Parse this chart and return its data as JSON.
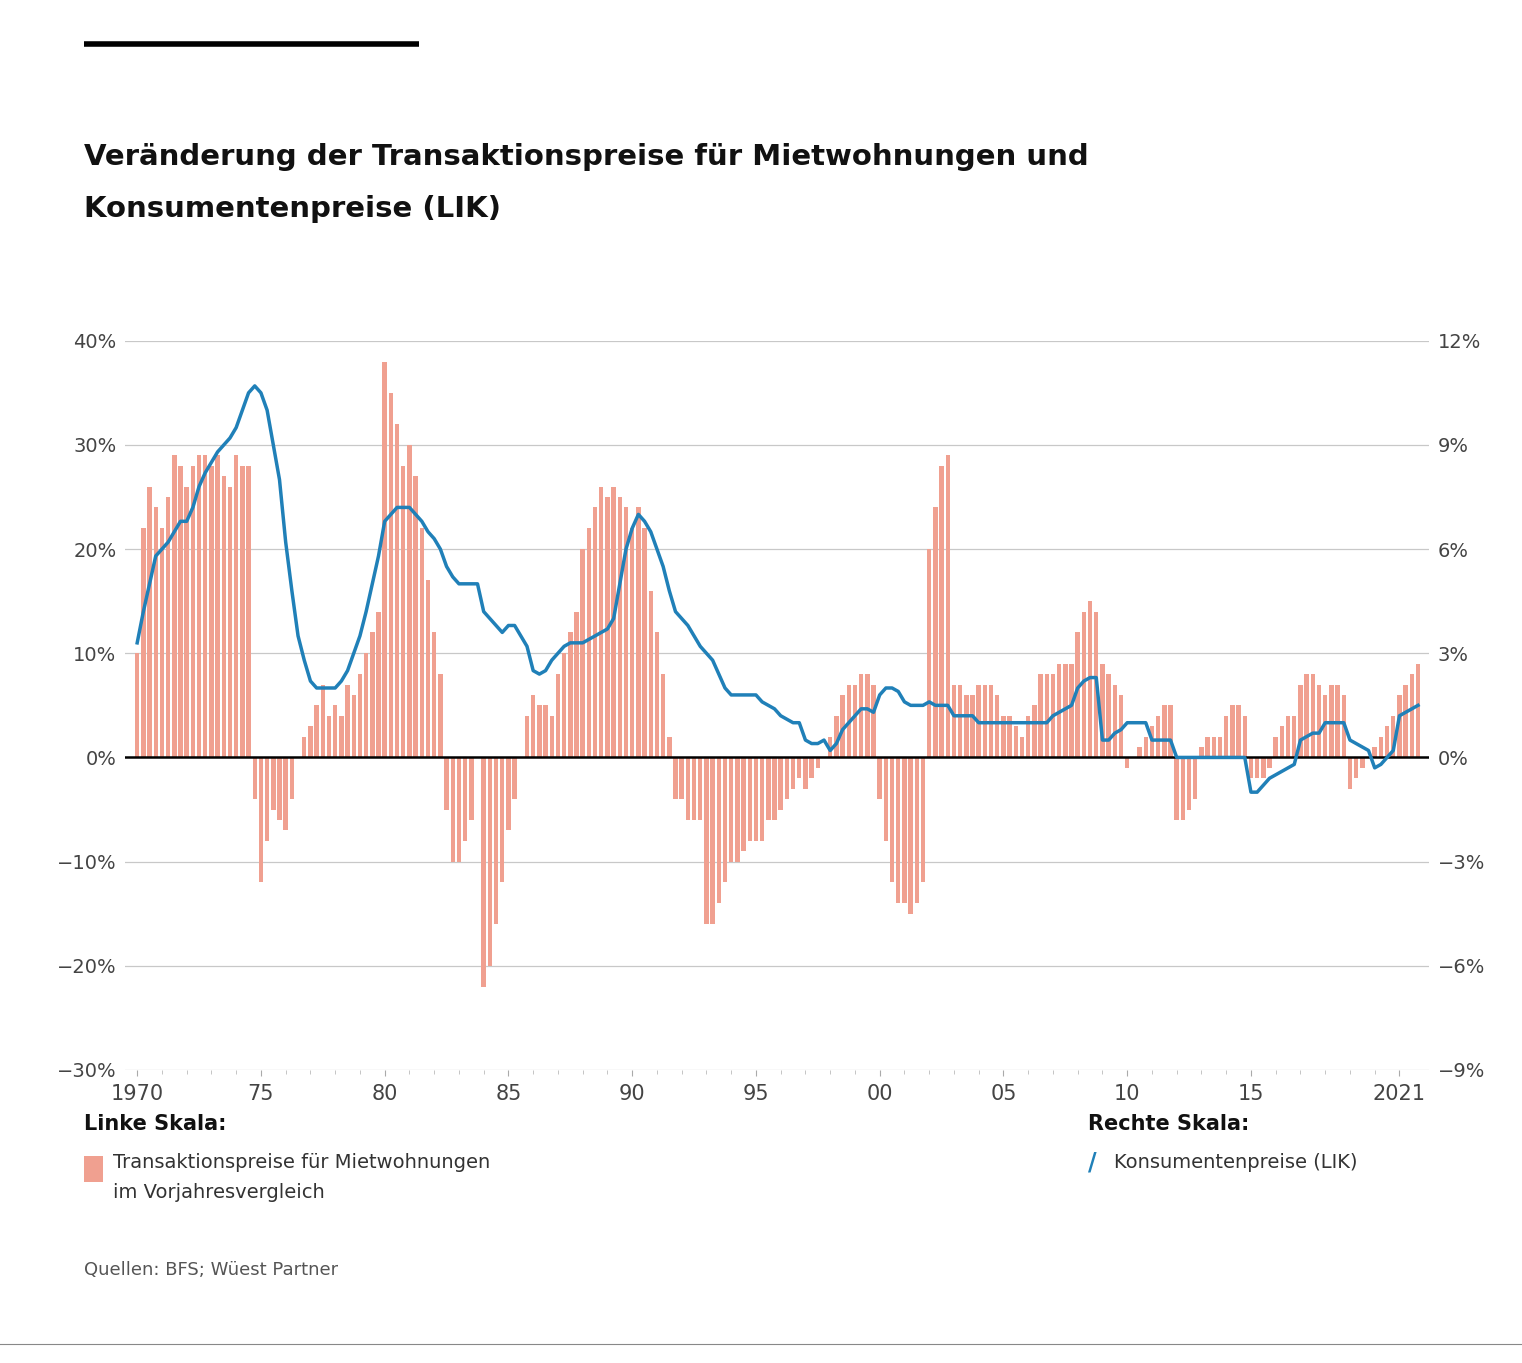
{
  "title_line1": "Veränderung der Transaktionspreise für Mietwohnungen und",
  "title_line2": "Konsumentenpreise (LIK)",
  "source": "Quellen: BFS; Wüest Partner",
  "legend_left_title": "Linke Skala:",
  "legend_left_label1": "Transaktionspreise für Mietwohnungen",
  "legend_left_label2": "im Vorjahresvergleich",
  "legend_right_title": "Rechte Skala:",
  "legend_right_label": "Konsumentenpreise (LIK)",
  "bar_color": "#F0A090",
  "line_color": "#2080B8",
  "background_color": "#FFFFFF",
  "grid_color": "#C8C8C8",
  "zero_line_color": "#000000",
  "ylim_left": [
    -0.3,
    0.4
  ],
  "ylim_right": [
    -0.09,
    0.12
  ],
  "yticks_left": [
    -0.3,
    -0.2,
    -0.1,
    0.0,
    0.1,
    0.2,
    0.3,
    0.4
  ],
  "yticks_right": [
    -0.09,
    -0.06,
    -0.03,
    0.0,
    0.03,
    0.06,
    0.09,
    0.12
  ],
  "bar_x": [
    1970.0,
    1970.25,
    1970.5,
    1970.75,
    1971.0,
    1971.25,
    1971.5,
    1971.75,
    1972.0,
    1972.25,
    1972.5,
    1972.75,
    1973.0,
    1973.25,
    1973.5,
    1973.75,
    1974.0,
    1974.25,
    1974.5,
    1974.75,
    1975.0,
    1975.25,
    1975.5,
    1975.75,
    1976.0,
    1976.25,
    1976.5,
    1976.75,
    1977.0,
    1977.25,
    1977.5,
    1977.75,
    1978.0,
    1978.25,
    1978.5,
    1978.75,
    1979.0,
    1979.25,
    1979.5,
    1979.75,
    1980.0,
    1980.25,
    1980.5,
    1980.75,
    1981.0,
    1981.25,
    1981.5,
    1981.75,
    1982.0,
    1982.25,
    1982.5,
    1982.75,
    1983.0,
    1983.25,
    1983.5,
    1983.75,
    1984.0,
    1984.25,
    1984.5,
    1984.75,
    1985.0,
    1985.25,
    1985.5,
    1985.75,
    1986.0,
    1986.25,
    1986.5,
    1986.75,
    1987.0,
    1987.25,
    1987.5,
    1987.75,
    1988.0,
    1988.25,
    1988.5,
    1988.75,
    1989.0,
    1989.25,
    1989.5,
    1989.75,
    1990.0,
    1990.25,
    1990.5,
    1990.75,
    1991.0,
    1991.25,
    1991.5,
    1991.75,
    1992.0,
    1992.25,
    1992.5,
    1992.75,
    1993.0,
    1993.25,
    1993.5,
    1993.75,
    1994.0,
    1994.25,
    1994.5,
    1994.75,
    1995.0,
    1995.25,
    1995.5,
    1995.75,
    1996.0,
    1996.25,
    1996.5,
    1996.75,
    1997.0,
    1997.25,
    1997.5,
    1997.75,
    1998.0,
    1998.25,
    1998.5,
    1998.75,
    1999.0,
    1999.25,
    1999.5,
    1999.75,
    2000.0,
    2000.25,
    2000.5,
    2000.75,
    2001.0,
    2001.25,
    2001.5,
    2001.75,
    2002.0,
    2002.25,
    2002.5,
    2002.75,
    2003.0,
    2003.25,
    2003.5,
    2003.75,
    2004.0,
    2004.25,
    2004.5,
    2004.75,
    2005.0,
    2005.25,
    2005.5,
    2005.75,
    2006.0,
    2006.25,
    2006.5,
    2006.75,
    2007.0,
    2007.25,
    2007.5,
    2007.75,
    2008.0,
    2008.25,
    2008.5,
    2008.75,
    2009.0,
    2009.25,
    2009.5,
    2009.75,
    2010.0,
    2010.25,
    2010.5,
    2010.75,
    2011.0,
    2011.25,
    2011.5,
    2011.75,
    2012.0,
    2012.25,
    2012.5,
    2012.75,
    2013.0,
    2013.25,
    2013.5,
    2013.75,
    2014.0,
    2014.25,
    2014.5,
    2014.75,
    2015.0,
    2015.25,
    2015.5,
    2015.75,
    2016.0,
    2016.25,
    2016.5,
    2016.75,
    2017.0,
    2017.25,
    2017.5,
    2017.75,
    2018.0,
    2018.25,
    2018.5,
    2018.75,
    2019.0,
    2019.25,
    2019.5,
    2019.75,
    2020.0,
    2020.25,
    2020.5,
    2020.75,
    2021.0,
    2021.25,
    2021.5,
    2021.75
  ],
  "bar_values": [
    0.1,
    0.22,
    0.26,
    0.24,
    0.22,
    0.25,
    0.29,
    0.28,
    0.26,
    0.28,
    0.29,
    0.29,
    0.28,
    0.29,
    0.27,
    0.26,
    0.29,
    0.28,
    0.28,
    -0.04,
    -0.12,
    -0.08,
    -0.05,
    -0.06,
    -0.07,
    -0.04,
    0.0,
    0.02,
    0.03,
    0.05,
    0.07,
    0.04,
    0.05,
    0.04,
    0.07,
    0.06,
    0.08,
    0.1,
    0.12,
    0.14,
    0.38,
    0.35,
    0.32,
    0.28,
    0.3,
    0.27,
    0.22,
    0.17,
    0.12,
    0.08,
    -0.05,
    -0.1,
    -0.1,
    -0.08,
    -0.06,
    0.0,
    -0.22,
    -0.2,
    -0.16,
    -0.12,
    -0.07,
    -0.04,
    0.0,
    0.04,
    0.06,
    0.05,
    0.05,
    0.04,
    0.08,
    0.1,
    0.12,
    0.14,
    0.2,
    0.22,
    0.24,
    0.26,
    0.25,
    0.26,
    0.25,
    0.24,
    0.22,
    0.24,
    0.22,
    0.16,
    0.12,
    0.08,
    0.02,
    -0.04,
    -0.04,
    -0.06,
    -0.06,
    -0.06,
    -0.16,
    -0.16,
    -0.14,
    -0.12,
    -0.1,
    -0.1,
    -0.09,
    -0.08,
    -0.08,
    -0.08,
    -0.06,
    -0.06,
    -0.05,
    -0.04,
    -0.03,
    -0.02,
    -0.03,
    -0.02,
    -0.01,
    0.0,
    0.02,
    0.04,
    0.06,
    0.07,
    0.07,
    0.08,
    0.08,
    0.07,
    -0.04,
    -0.08,
    -0.12,
    -0.14,
    -0.14,
    -0.15,
    -0.14,
    -0.12,
    0.2,
    0.24,
    0.28,
    0.29,
    0.07,
    0.07,
    0.06,
    0.06,
    0.07,
    0.07,
    0.07,
    0.06,
    0.04,
    0.04,
    0.03,
    0.02,
    0.04,
    0.05,
    0.08,
    0.08,
    0.08,
    0.09,
    0.09,
    0.09,
    0.12,
    0.14,
    0.15,
    0.14,
    0.09,
    0.08,
    0.07,
    0.06,
    -0.01,
    0.0,
    0.01,
    0.02,
    0.03,
    0.04,
    0.05,
    0.05,
    -0.06,
    -0.06,
    -0.05,
    -0.04,
    0.01,
    0.02,
    0.02,
    0.02,
    0.04,
    0.05,
    0.05,
    0.04,
    -0.02,
    -0.02,
    -0.02,
    -0.01,
    0.02,
    0.03,
    0.04,
    0.04,
    0.07,
    0.08,
    0.08,
    0.07,
    0.06,
    0.07,
    0.07,
    0.06,
    -0.03,
    -0.02,
    -0.01,
    0.0,
    0.01,
    0.02,
    0.03,
    0.04,
    0.06,
    0.07,
    0.08,
    0.09
  ],
  "line_x": [
    1970.0,
    1970.25,
    1970.5,
    1970.75,
    1971.0,
    1971.25,
    1971.5,
    1971.75,
    1972.0,
    1972.25,
    1972.5,
    1972.75,
    1973.0,
    1973.25,
    1973.5,
    1973.75,
    1974.0,
    1974.25,
    1974.5,
    1974.75,
    1975.0,
    1975.25,
    1975.5,
    1975.75,
    1976.0,
    1976.25,
    1976.5,
    1976.75,
    1977.0,
    1977.25,
    1977.5,
    1977.75,
    1978.0,
    1978.25,
    1978.5,
    1978.75,
    1979.0,
    1979.25,
    1979.5,
    1979.75,
    1980.0,
    1980.25,
    1980.5,
    1980.75,
    1981.0,
    1981.25,
    1981.5,
    1981.75,
    1982.0,
    1982.25,
    1982.5,
    1982.75,
    1983.0,
    1983.25,
    1983.5,
    1983.75,
    1984.0,
    1984.25,
    1984.5,
    1984.75,
    1985.0,
    1985.25,
    1985.5,
    1985.75,
    1986.0,
    1986.25,
    1986.5,
    1986.75,
    1987.0,
    1987.25,
    1987.5,
    1987.75,
    1988.0,
    1988.25,
    1988.5,
    1988.75,
    1989.0,
    1989.25,
    1989.5,
    1989.75,
    1990.0,
    1990.25,
    1990.5,
    1990.75,
    1991.0,
    1991.25,
    1991.5,
    1991.75,
    1992.0,
    1992.25,
    1992.5,
    1992.75,
    1993.0,
    1993.25,
    1993.5,
    1993.75,
    1994.0,
    1994.25,
    1994.5,
    1994.75,
    1995.0,
    1995.25,
    1995.5,
    1995.75,
    1996.0,
    1996.25,
    1996.5,
    1996.75,
    1997.0,
    1997.25,
    1997.5,
    1997.75,
    1998.0,
    1998.25,
    1998.5,
    1998.75,
    1999.0,
    1999.25,
    1999.5,
    1999.75,
    2000.0,
    2000.25,
    2000.5,
    2000.75,
    2001.0,
    2001.25,
    2001.5,
    2001.75,
    2002.0,
    2002.25,
    2002.5,
    2002.75,
    2003.0,
    2003.25,
    2003.5,
    2003.75,
    2004.0,
    2004.25,
    2004.5,
    2004.75,
    2005.0,
    2005.25,
    2005.5,
    2005.75,
    2006.0,
    2006.25,
    2006.5,
    2006.75,
    2007.0,
    2007.25,
    2007.5,
    2007.75,
    2008.0,
    2008.25,
    2008.5,
    2008.75,
    2009.0,
    2009.25,
    2009.5,
    2009.75,
    2010.0,
    2010.25,
    2010.5,
    2010.75,
    2011.0,
    2011.25,
    2011.5,
    2011.75,
    2012.0,
    2012.25,
    2012.5,
    2012.75,
    2013.0,
    2013.25,
    2013.5,
    2013.75,
    2014.0,
    2014.25,
    2014.5,
    2014.75,
    2015.0,
    2015.25,
    2015.5,
    2015.75,
    2016.0,
    2016.25,
    2016.5,
    2016.75,
    2017.0,
    2017.25,
    2017.5,
    2017.75,
    2018.0,
    2018.25,
    2018.5,
    2018.75,
    2019.0,
    2019.25,
    2019.5,
    2019.75,
    2020.0,
    2020.25,
    2020.5,
    2020.75,
    2021.0,
    2021.25,
    2021.5,
    2021.75
  ],
  "line_values": [
    0.033,
    0.042,
    0.05,
    0.058,
    0.06,
    0.062,
    0.065,
    0.068,
    0.068,
    0.072,
    0.078,
    0.082,
    0.085,
    0.088,
    0.09,
    0.092,
    0.095,
    0.1,
    0.105,
    0.107,
    0.105,
    0.1,
    0.09,
    0.08,
    0.062,
    0.048,
    0.035,
    0.028,
    0.022,
    0.02,
    0.02,
    0.02,
    0.02,
    0.022,
    0.025,
    0.03,
    0.035,
    0.042,
    0.05,
    0.058,
    0.068,
    0.07,
    0.072,
    0.072,
    0.072,
    0.07,
    0.068,
    0.065,
    0.063,
    0.06,
    0.055,
    0.052,
    0.05,
    0.05,
    0.05,
    0.05,
    0.042,
    0.04,
    0.038,
    0.036,
    0.038,
    0.038,
    0.035,
    0.032,
    0.025,
    0.024,
    0.025,
    0.028,
    0.03,
    0.032,
    0.033,
    0.033,
    0.033,
    0.034,
    0.035,
    0.036,
    0.037,
    0.04,
    0.05,
    0.06,
    0.066,
    0.07,
    0.068,
    0.065,
    0.06,
    0.055,
    0.048,
    0.042,
    0.04,
    0.038,
    0.035,
    0.032,
    0.03,
    0.028,
    0.024,
    0.02,
    0.018,
    0.018,
    0.018,
    0.018,
    0.018,
    0.016,
    0.015,
    0.014,
    0.012,
    0.011,
    0.01,
    0.01,
    0.005,
    0.004,
    0.004,
    0.005,
    0.002,
    0.004,
    0.008,
    0.01,
    0.012,
    0.014,
    0.014,
    0.013,
    0.018,
    0.02,
    0.02,
    0.019,
    0.016,
    0.015,
    0.015,
    0.015,
    0.016,
    0.015,
    0.015,
    0.015,
    0.012,
    0.012,
    0.012,
    0.012,
    0.01,
    0.01,
    0.01,
    0.01,
    0.01,
    0.01,
    0.01,
    0.01,
    0.01,
    0.01,
    0.01,
    0.01,
    0.012,
    0.013,
    0.014,
    0.015,
    0.02,
    0.022,
    0.023,
    0.023,
    0.005,
    0.005,
    0.007,
    0.008,
    0.01,
    0.01,
    0.01,
    0.01,
    0.005,
    0.005,
    0.005,
    0.005,
    0.0,
    0.0,
    0.0,
    0.0,
    0.0,
    0.0,
    0.0,
    0.0,
    0.0,
    0.0,
    0.0,
    0.0,
    -0.01,
    -0.01,
    -0.008,
    -0.006,
    -0.005,
    -0.004,
    -0.003,
    -0.002,
    0.005,
    0.006,
    0.007,
    0.007,
    0.01,
    0.01,
    0.01,
    0.01,
    0.005,
    0.004,
    0.003,
    0.002,
    -0.003,
    -0.002,
    0.0,
    0.002,
    0.012,
    0.013,
    0.014,
    0.015
  ]
}
